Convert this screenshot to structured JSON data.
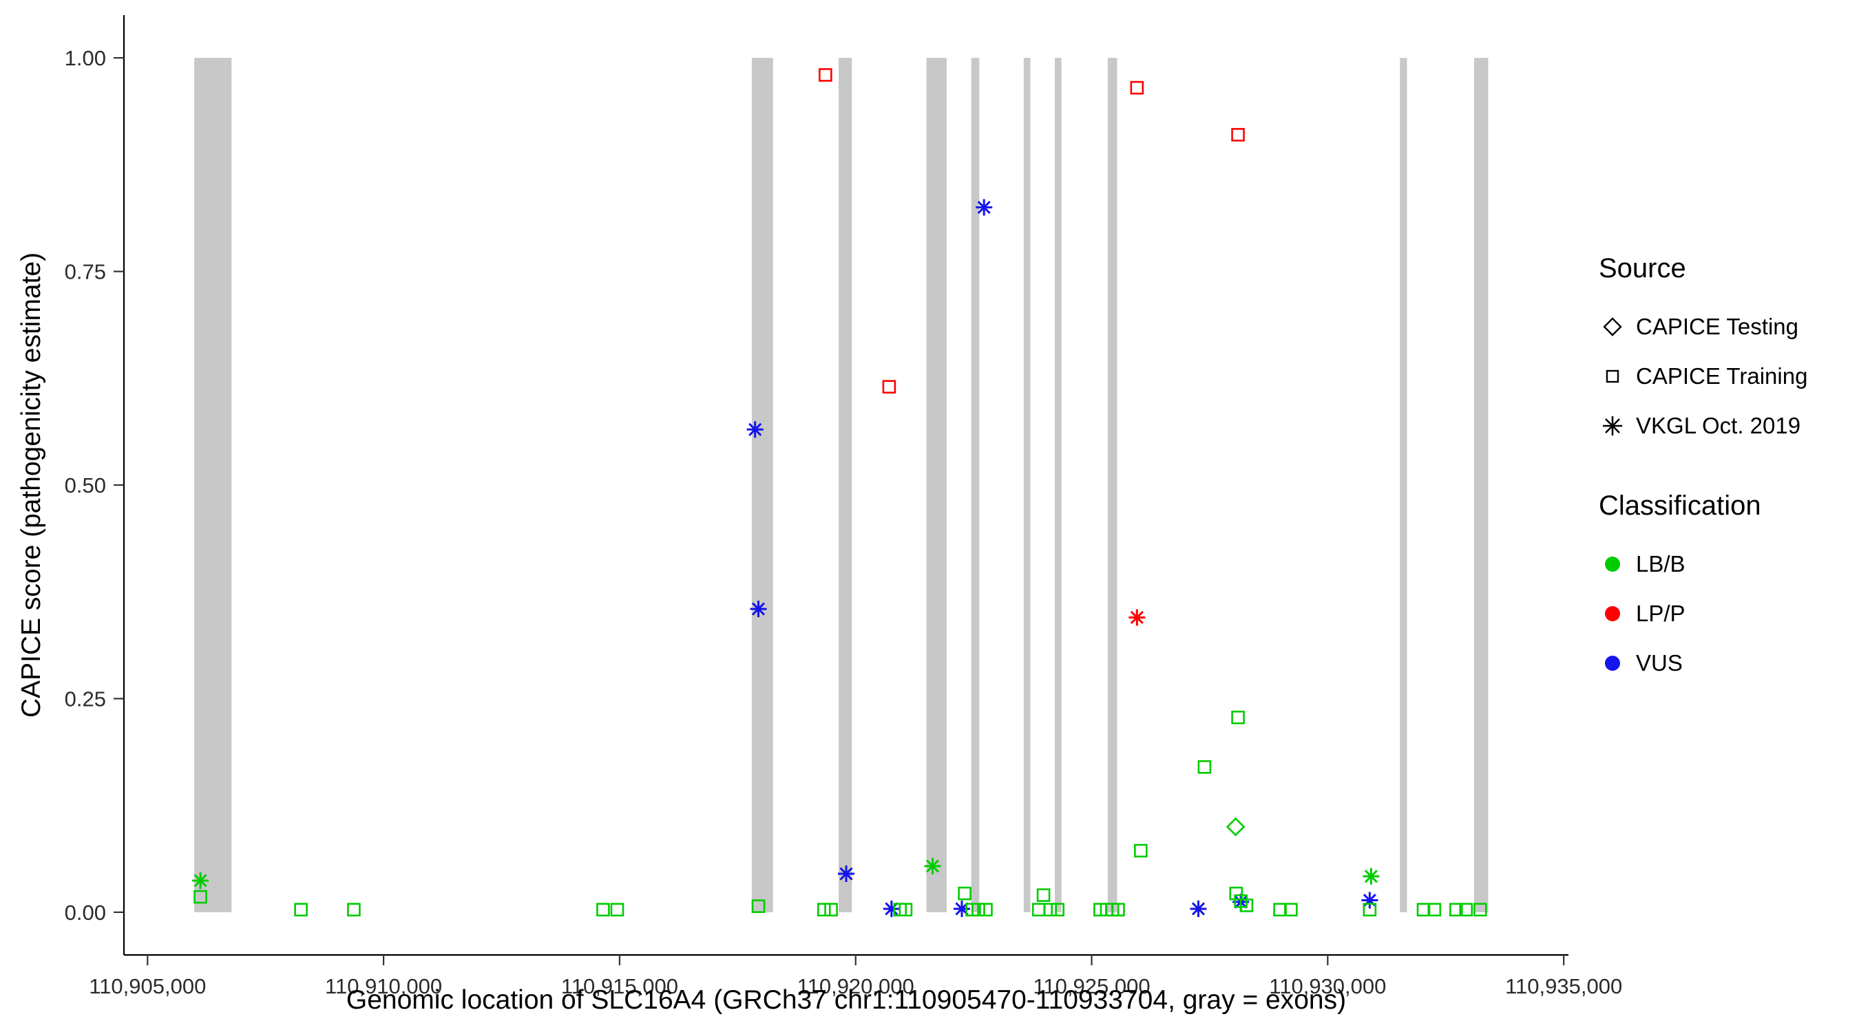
{
  "chart_data": {
    "type": "scatter",
    "title": "",
    "xlabel": "Genomic location of SLC16A4 (GRCh37 chr1:110905470-110933704, gray = exons)",
    "ylabel": "CAPICE score (pathogenicity estimate)",
    "xlim": [
      110904500,
      110935100
    ],
    "ylim": [
      -0.05,
      1.05
    ],
    "x_ticks": [
      110905000,
      110910000,
      110915000,
      110920000,
      110925000,
      110930000,
      110935000
    ],
    "x_tick_labels": [
      "110,905,000",
      "110,910,000",
      "110,915,000",
      "110,920,000",
      "110,925,000",
      "110,930,000",
      "110,935,000"
    ],
    "y_ticks": [
      0,
      0.25,
      0.5,
      0.75,
      1
    ],
    "y_tick_labels": [
      "0.00",
      "0.25",
      "0.50",
      "0.75",
      "1.00"
    ],
    "grid": false,
    "legend_position": "right",
    "exon_color": "#C8C8C8",
    "exons": [
      [
        110905990,
        110906780
      ],
      [
        110917800,
        110918250
      ],
      [
        110919640,
        110919920
      ],
      [
        110921500,
        110921930
      ],
      [
        110922450,
        110922620
      ],
      [
        110923560,
        110923700
      ],
      [
        110924220,
        110924360
      ],
      [
        110925340,
        110925540
      ],
      [
        110931530,
        110931680
      ],
      [
        110933100,
        110933400
      ]
    ],
    "classes": {
      "LB/B": "#00CC00",
      "LP/P": "#FF0000",
      "VUS": "#1414EB"
    },
    "shapes": {
      "CAPICE Testing": "diamond",
      "CAPICE Training": "square",
      "VKGL Oct. 2019": "asterisk"
    },
    "points": [
      {
        "x": 110919360,
        "y": 0.98,
        "source": "CAPICE Training",
        "cls": "LP/P"
      },
      {
        "x": 110920710,
        "y": 0.615,
        "source": "CAPICE Training",
        "cls": "LP/P"
      },
      {
        "x": 110925960,
        "y": 0.965,
        "source": "CAPICE Training",
        "cls": "LP/P"
      },
      {
        "x": 110928100,
        "y": 0.91,
        "source": "CAPICE Training",
        "cls": "LP/P"
      },
      {
        "x": 110925960,
        "y": 0.345,
        "source": "VKGL Oct. 2019",
        "cls": "LP/P"
      },
      {
        "x": 110917870,
        "y": 0.565,
        "source": "VKGL Oct. 2019",
        "cls": "VUS"
      },
      {
        "x": 110917940,
        "y": 0.355,
        "source": "VKGL Oct. 2019",
        "cls": "VUS"
      },
      {
        "x": 110922720,
        "y": 0.825,
        "source": "VKGL Oct. 2019",
        "cls": "VUS"
      },
      {
        "x": 110919800,
        "y": 0.045,
        "source": "VKGL Oct. 2019",
        "cls": "VUS"
      },
      {
        "x": 110920760,
        "y": 0.004,
        "source": "VKGL Oct. 2019",
        "cls": "VUS"
      },
      {
        "x": 110922250,
        "y": 0.004,
        "source": "VKGL Oct. 2019",
        "cls": "VUS"
      },
      {
        "x": 110927260,
        "y": 0.004,
        "source": "VKGL Oct. 2019",
        "cls": "VUS"
      },
      {
        "x": 110928160,
        "y": 0.012,
        "source": "VKGL Oct. 2019",
        "cls": "VUS"
      },
      {
        "x": 110930890,
        "y": 0.014,
        "source": "VKGL Oct. 2019",
        "cls": "VUS"
      },
      {
        "x": 110906120,
        "y": 0.037,
        "source": "VKGL Oct. 2019",
        "cls": "LB/B"
      },
      {
        "x": 110921630,
        "y": 0.054,
        "source": "VKGL Oct. 2019",
        "cls": "LB/B"
      },
      {
        "x": 110930920,
        "y": 0.042,
        "source": "VKGL Oct. 2019",
        "cls": "LB/B"
      },
      {
        "x": 110928050,
        "y": 0.1,
        "source": "CAPICE Testing",
        "cls": "LB/B"
      },
      {
        "x": 110906120,
        "y": 0.018,
        "source": "CAPICE Training",
        "cls": "LB/B"
      },
      {
        "x": 110908250,
        "y": 0.003,
        "source": "CAPICE Training",
        "cls": "LB/B"
      },
      {
        "x": 110909370,
        "y": 0.003,
        "source": "CAPICE Training",
        "cls": "LB/B"
      },
      {
        "x": 110914650,
        "y": 0.003,
        "source": "CAPICE Training",
        "cls": "LB/B"
      },
      {
        "x": 110914950,
        "y": 0.003,
        "source": "CAPICE Training",
        "cls": "LB/B"
      },
      {
        "x": 110917940,
        "y": 0.007,
        "source": "CAPICE Training",
        "cls": "LB/B"
      },
      {
        "x": 110919330,
        "y": 0.003,
        "source": "CAPICE Training",
        "cls": "LB/B"
      },
      {
        "x": 110919480,
        "y": 0.003,
        "source": "CAPICE Training",
        "cls": "LB/B"
      },
      {
        "x": 110920940,
        "y": 0.003,
        "source": "CAPICE Training",
        "cls": "LB/B"
      },
      {
        "x": 110921060,
        "y": 0.003,
        "source": "CAPICE Training",
        "cls": "LB/B"
      },
      {
        "x": 110922310,
        "y": 0.022,
        "source": "CAPICE Training",
        "cls": "LB/B"
      },
      {
        "x": 110922470,
        "y": 0.003,
        "source": "CAPICE Training",
        "cls": "LB/B"
      },
      {
        "x": 110922600,
        "y": 0.003,
        "source": "CAPICE Training",
        "cls": "LB/B"
      },
      {
        "x": 110922760,
        "y": 0.003,
        "source": "CAPICE Training",
        "cls": "LB/B"
      },
      {
        "x": 110923980,
        "y": 0.02,
        "source": "CAPICE Training",
        "cls": "LB/B"
      },
      {
        "x": 110923880,
        "y": 0.003,
        "source": "CAPICE Training",
        "cls": "LB/B"
      },
      {
        "x": 110924120,
        "y": 0.003,
        "source": "CAPICE Training",
        "cls": "LB/B"
      },
      {
        "x": 110924280,
        "y": 0.003,
        "source": "CAPICE Training",
        "cls": "LB/B"
      },
      {
        "x": 110925180,
        "y": 0.003,
        "source": "CAPICE Training",
        "cls": "LB/B"
      },
      {
        "x": 110925320,
        "y": 0.003,
        "source": "CAPICE Training",
        "cls": "LB/B"
      },
      {
        "x": 110925440,
        "y": 0.003,
        "source": "CAPICE Training",
        "cls": "LB/B"
      },
      {
        "x": 110925560,
        "y": 0.003,
        "source": "CAPICE Training",
        "cls": "LB/B"
      },
      {
        "x": 110926040,
        "y": 0.072,
        "source": "CAPICE Training",
        "cls": "LB/B"
      },
      {
        "x": 110927390,
        "y": 0.17,
        "source": "CAPICE Training",
        "cls": "LB/B"
      },
      {
        "x": 110928100,
        "y": 0.228,
        "source": "CAPICE Training",
        "cls": "LB/B"
      },
      {
        "x": 110928060,
        "y": 0.022,
        "source": "CAPICE Training",
        "cls": "LB/B"
      },
      {
        "x": 110928160,
        "y": 0.013,
        "source": "CAPICE Training",
        "cls": "LB/B"
      },
      {
        "x": 110928280,
        "y": 0.008,
        "source": "CAPICE Training",
        "cls": "LB/B"
      },
      {
        "x": 110928990,
        "y": 0.003,
        "source": "CAPICE Training",
        "cls": "LB/B"
      },
      {
        "x": 110929220,
        "y": 0.003,
        "source": "CAPICE Training",
        "cls": "LB/B"
      },
      {
        "x": 110930890,
        "y": 0.003,
        "source": "CAPICE Training",
        "cls": "LB/B"
      },
      {
        "x": 110932030,
        "y": 0.003,
        "source": "CAPICE Training",
        "cls": "LB/B"
      },
      {
        "x": 110932260,
        "y": 0.003,
        "source": "CAPICE Training",
        "cls": "LB/B"
      },
      {
        "x": 110932720,
        "y": 0.003,
        "source": "CAPICE Training",
        "cls": "LB/B"
      },
      {
        "x": 110932930,
        "y": 0.003,
        "source": "CAPICE Training",
        "cls": "LB/B"
      },
      {
        "x": 110933230,
        "y": 0.003,
        "source": "CAPICE Training",
        "cls": "LB/B"
      }
    ]
  },
  "legend": {
    "source_title": "Source",
    "source_items": [
      {
        "label": "CAPICE Testing",
        "shape": "diamond"
      },
      {
        "label": "CAPICE Training",
        "shape": "square"
      },
      {
        "label": "VKGL Oct. 2019",
        "shape": "asterisk"
      }
    ],
    "class_title": "Classification",
    "class_items": [
      {
        "label": "LB/B",
        "color": "#00CC00"
      },
      {
        "label": "LP/P",
        "color": "#FF0000"
      },
      {
        "label": "VUS",
        "color": "#1414EB"
      }
    ]
  }
}
